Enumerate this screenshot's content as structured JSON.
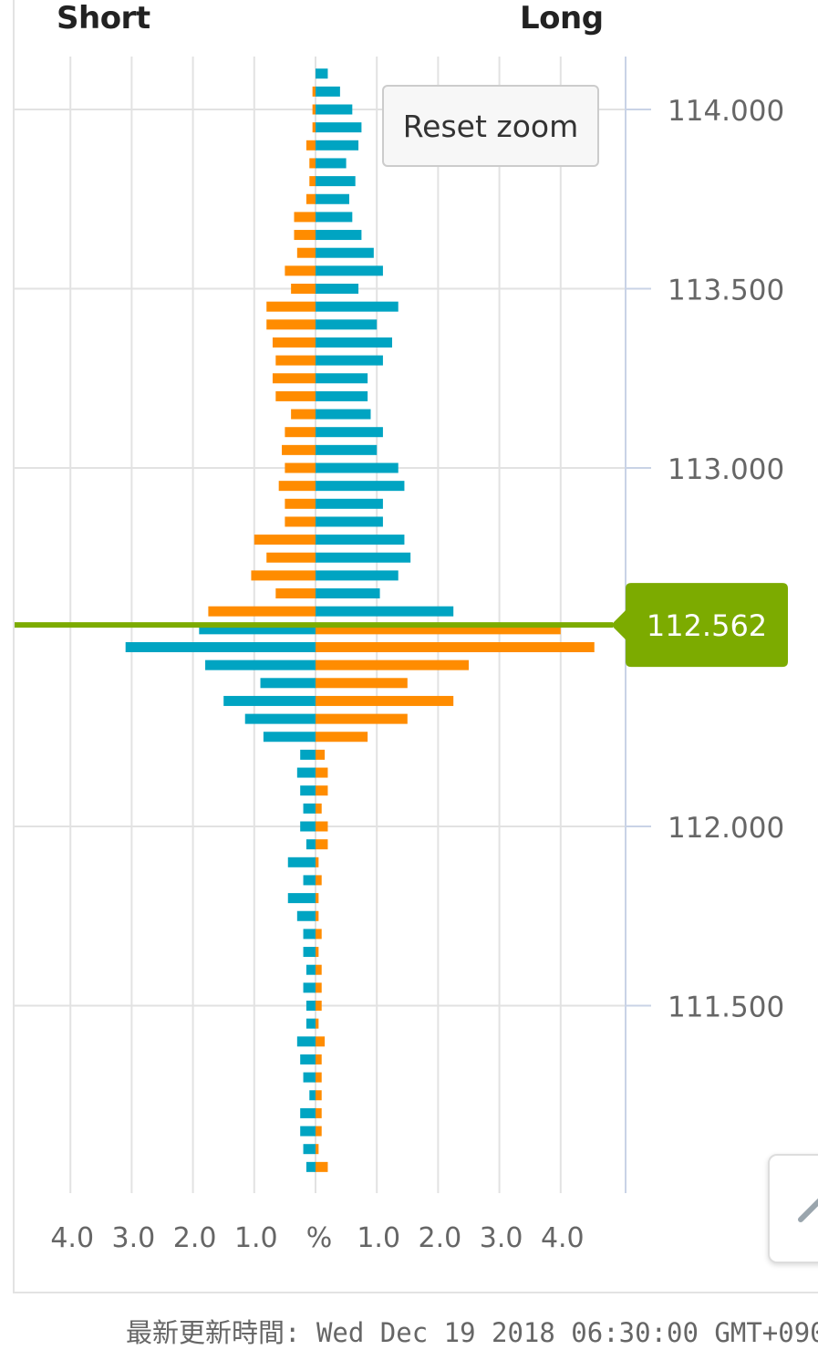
{
  "header": {
    "short_label": "Short",
    "long_label": "Long"
  },
  "reset_zoom_label": "Reset zoom",
  "footer": {
    "updated_label": "最新更新時間:",
    "updated_value": "Wed Dec 19 2018 06:30:00 GMT+090"
  },
  "colors": {
    "buy": "#00a4c2",
    "sell": "#ff8c00",
    "current": "#7cab00",
    "grid": "#e2e2e2",
    "axis": "#c9d3e6"
  },
  "chart_data": {
    "type": "bar",
    "current_price": 112.562,
    "current_price_label": "112.562",
    "price_ticks": [
      114.0,
      113.5,
      113.0,
      112.0,
      111.5
    ],
    "price_tick_labels": [
      "114.000",
      "113.500",
      "113.000",
      "112.000",
      "111.500"
    ],
    "x_tick_labels_left": [
      "4.0",
      "3.0",
      "2.0",
      "1.0"
    ],
    "x_tick_labels_right": [
      "1.0",
      "2.0",
      "3.0",
      "4.0"
    ],
    "center_label": "%",
    "price_step": 0.05,
    "series": [
      {
        "prices": [
          114.1,
          114.05,
          114.0,
          113.95,
          113.9,
          113.85,
          113.8,
          113.75,
          113.7,
          113.65,
          113.6,
          113.55,
          113.5,
          113.45,
          113.4,
          113.35,
          113.3,
          113.25,
          113.2,
          113.15,
          113.1,
          113.05,
          113.0,
          112.95,
          112.9,
          112.85,
          112.8,
          112.75,
          112.7,
          112.65,
          112.6
        ],
        "short": [
          0,
          0.05,
          0.05,
          0.05,
          0.15,
          0.1,
          0.1,
          0.15,
          0.35,
          0.35,
          0.3,
          0.5,
          0.4,
          0.8,
          0.8,
          0.7,
          0.65,
          0.7,
          0.65,
          0.4,
          0.5,
          0.55,
          0.5,
          0.6,
          0.5,
          0.5,
          1.0,
          0.8,
          1.05,
          0.65,
          1.75
        ],
        "long": [
          0.2,
          0.4,
          0.6,
          0.75,
          0.7,
          0.5,
          0.65,
          0.55,
          0.6,
          0.75,
          0.95,
          1.1,
          0.7,
          1.35,
          1.0,
          1.25,
          1.1,
          0.85,
          0.85,
          0.9,
          1.1,
          1.0,
          1.35,
          1.45,
          1.1,
          1.1,
          1.45,
          1.55,
          1.35,
          1.05,
          2.25
        ]
      },
      {
        "prices": [
          112.55,
          112.5,
          112.45,
          112.4,
          112.35,
          112.3,
          112.25,
          112.2,
          112.15,
          112.1,
          112.05,
          112.0,
          111.95,
          111.9,
          111.85,
          111.8,
          111.75,
          111.7,
          111.65,
          111.6,
          111.55,
          111.5,
          111.45,
          111.4,
          111.35,
          111.3,
          111.25,
          111.2,
          111.15,
          111.1,
          111.05
        ],
        "long": [
          4.0,
          4.55,
          2.5,
          1.5,
          2.25,
          1.5,
          0.85,
          0.15,
          0.2,
          0.2,
          0.1,
          0.2,
          0.2,
          0.05,
          0.1,
          0.05,
          0.05,
          0.1,
          0.05,
          0.1,
          0.1,
          0.1,
          0.05,
          0.15,
          0.1,
          0.1,
          0.1,
          0.1,
          0.1,
          0.05,
          0.2
        ],
        "short": [
          1.9,
          3.1,
          1.8,
          0.9,
          1.5,
          1.15,
          0.85,
          0.25,
          0.3,
          0.25,
          0.2,
          0.25,
          0.15,
          0.45,
          0.2,
          0.45,
          0.3,
          0.2,
          0.2,
          0.15,
          0.2,
          0.15,
          0.15,
          0.3,
          0.25,
          0.2,
          0.1,
          0.25,
          0.25,
          0.2,
          0.15
        ]
      }
    ]
  }
}
